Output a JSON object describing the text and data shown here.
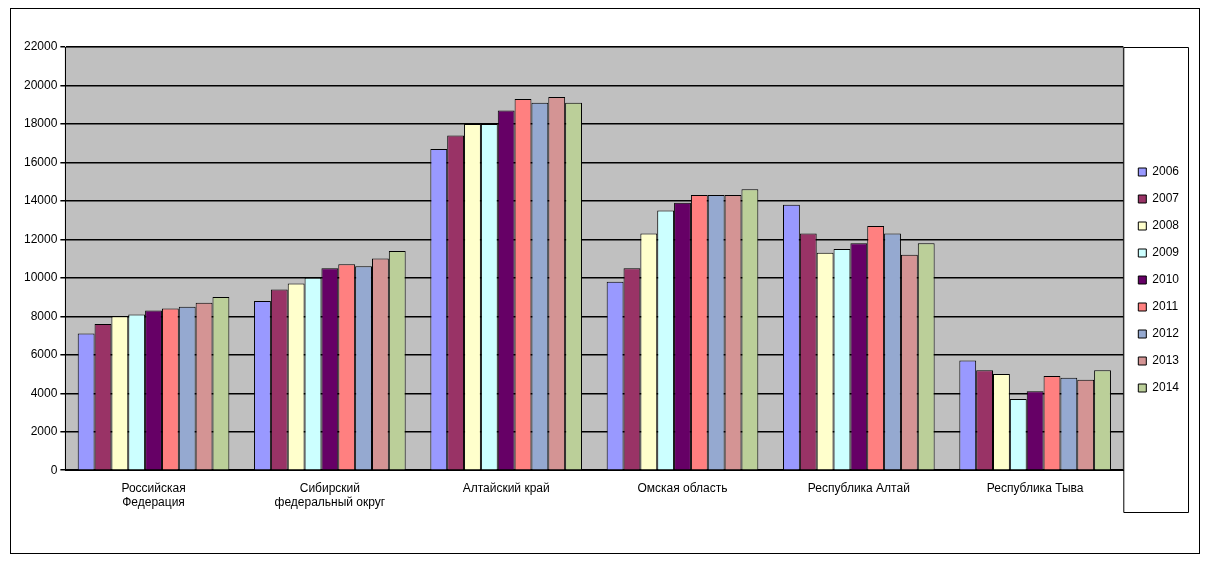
{
  "chart_data": {
    "type": "bar",
    "categories": [
      "Российская\nФедерация",
      "Сибирский\nфедеральный округ",
      "Алтайский край",
      "Омская область",
      "Республика Алтай",
      "Республика Тыва"
    ],
    "series": [
      {
        "name": "2006",
        "color": "#9999ff",
        "values": [
          7100,
          8800,
          16700,
          9800,
          13800,
          5700
        ]
      },
      {
        "name": "2007",
        "color": "#993366",
        "values": [
          7600,
          9400,
          17400,
          10500,
          12300,
          5200
        ]
      },
      {
        "name": "2008",
        "color": "#ffffcc",
        "values": [
          8000,
          9700,
          18000,
          12300,
          11300,
          5000
        ]
      },
      {
        "name": "2009",
        "color": "#ccffff",
        "values": [
          8100,
          10000,
          18000,
          13500,
          11500,
          3700
        ]
      },
      {
        "name": "2010",
        "color": "#660066",
        "values": [
          8300,
          10500,
          18700,
          13900,
          11800,
          4100
        ]
      },
      {
        "name": "2011",
        "color": "#ff8080",
        "values": [
          8400,
          10700,
          19300,
          14300,
          12700,
          4900
        ]
      },
      {
        "name": "2012",
        "color": "#95a9d0",
        "values": [
          8500,
          10600,
          19100,
          14300,
          12300,
          4800
        ]
      },
      {
        "name": "2013",
        "color": "#d49494",
        "values": [
          8700,
          11000,
          19400,
          14300,
          11200,
          4700
        ]
      },
      {
        "name": "2014",
        "color": "#bbcf99",
        "values": [
          9000,
          11400,
          19100,
          14600,
          11800,
          5200
        ]
      }
    ],
    "ylim": [
      0,
      22000
    ],
    "yticks": [
      0,
      2000,
      4000,
      6000,
      8000,
      10000,
      12000,
      14000,
      16000,
      18000,
      20000,
      22000
    ],
    "grid": "y",
    "legend": "right"
  }
}
